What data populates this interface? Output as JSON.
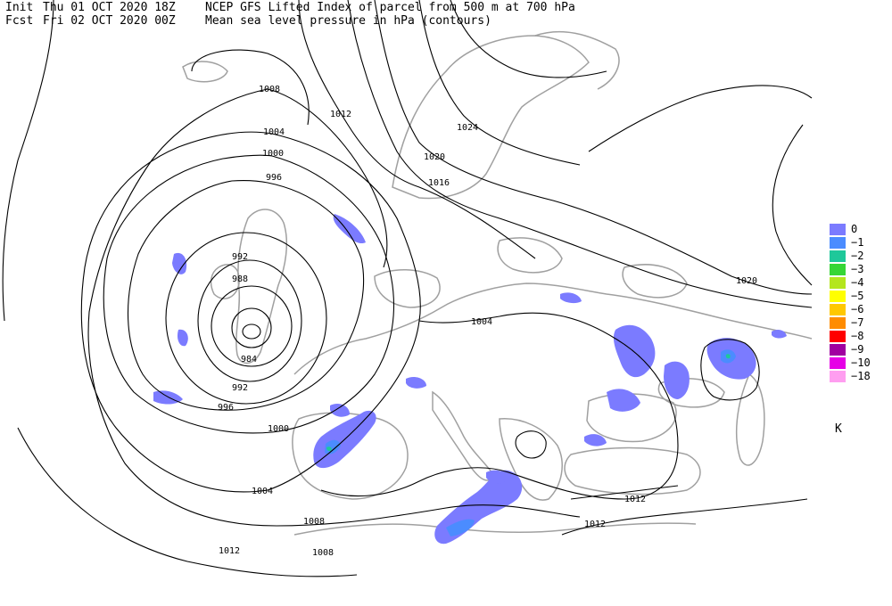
{
  "header": {
    "init_label": "Init",
    "init_time": "Thu 01 OCT 2020 18Z",
    "fcst_label": "Fcst",
    "fcst_time": "Fri 02 OCT 2020 00Z",
    "title_line1": "NCEP GFS Lifted Index of parcel from 500 m at 700 hPa",
    "title_line2": "Mean sea level pressure in hPa (contours)"
  },
  "legend": {
    "unit": "K",
    "items": [
      {
        "label": "0",
        "color": "#7b7bff"
      },
      {
        "label": "-1",
        "color": "#4b8cff"
      },
      {
        "label": "-2",
        "color": "#1ec89a"
      },
      {
        "label": "-3",
        "color": "#36d636"
      },
      {
        "label": "-4",
        "color": "#b4e61e"
      },
      {
        "label": "-5",
        "color": "#ffff00"
      },
      {
        "label": "-6",
        "color": "#ffc800"
      },
      {
        "label": "-7",
        "color": "#ff8c00"
      },
      {
        "label": "-8",
        "color": "#ff0000"
      },
      {
        "label": "-9",
        "color": "#a000a0"
      },
      {
        "label": "-10",
        "color": "#e600e6"
      },
      {
        "label": "-18",
        "color": "#ff9ef0"
      }
    ]
  },
  "isobar_labels": [
    "1008",
    "1012",
    "1024",
    "1004",
    "1020",
    "1000",
    "1016",
    "996",
    "992",
    "988",
    "984",
    "992",
    "996",
    "1000",
    "1004",
    "1020",
    "1004",
    "1008",
    "1012",
    "1012",
    "1008",
    "1012"
  ],
  "colors": {
    "coastline": "#a0a0a0",
    "isobar": "#000000",
    "background": "#ffffff"
  }
}
